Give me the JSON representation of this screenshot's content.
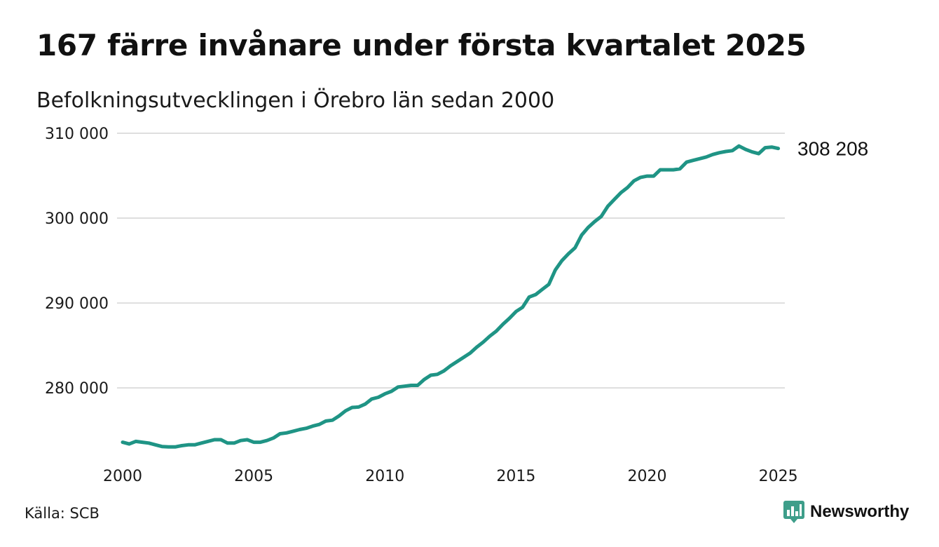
{
  "title": "167 färre invånare under första kvartalet 2025",
  "subtitle": "Befolkningsutvecklingen i Örebro län sedan 2000",
  "source": "Källa: SCB",
  "brand": {
    "name": "Newsworthy",
    "color": "#3e9e8a",
    "icon": "newsworthy-logo-icon"
  },
  "chart_data": {
    "type": "line",
    "title": "167 färre invånare under första kvartalet 2025",
    "subtitle": "Befolkningsutvecklingen i Örebro län sedan 2000",
    "xlabel": "",
    "ylabel": "",
    "xlim": [
      2000,
      2025.25
    ],
    "ylim": [
      272000,
      310000
    ],
    "x_ticks": [
      2000,
      2005,
      2010,
      2015,
      2020,
      2025
    ],
    "x_tick_labels": [
      "2000",
      "2005",
      "2010",
      "2015",
      "2020",
      "2025"
    ],
    "y_ticks": [
      280000,
      290000,
      300000,
      310000
    ],
    "y_tick_labels": [
      "280 000",
      "290 000",
      "300 000",
      "310 000"
    ],
    "grid": "horizontal",
    "line_color": "#1f9485",
    "end_label": "308 208",
    "series": [
      {
        "x": [
          2000,
          2000.25,
          2000.5,
          2000.75,
          2001,
          2001.25,
          2001.5,
          2001.75,
          2002,
          2002.25,
          2002.5,
          2002.75,
          2003,
          2003.25,
          2003.5,
          2003.75,
          2004,
          2004.25,
          2004.5,
          2004.75,
          2005,
          2005.25,
          2005.5,
          2005.75,
          2006,
          2006.25,
          2006.5,
          2006.75,
          2007,
          2007.25,
          2007.5,
          2007.75,
          2008,
          2008.25,
          2008.5,
          2008.75,
          2009,
          2009.25,
          2009.5,
          2009.75,
          2010,
          2010.25,
          2010.5,
          2010.75,
          2011,
          2011.25,
          2011.5,
          2011.75,
          2012,
          2012.25,
          2012.5,
          2012.75,
          2013,
          2013.25,
          2013.5,
          2013.75,
          2014,
          2014.25,
          2014.5,
          2014.75,
          2015,
          2015.25,
          2015.5,
          2015.75,
          2016,
          2016.25,
          2016.5,
          2016.75,
          2017,
          2017.25,
          2017.5,
          2017.75,
          2018,
          2018.25,
          2018.5,
          2018.75,
          2019,
          2019.25,
          2019.5,
          2019.75,
          2020,
          2020.25,
          2020.5,
          2020.75,
          2021,
          2021.25,
          2021.5,
          2021.75,
          2022,
          2022.25,
          2022.5,
          2022.75,
          2023,
          2023.25,
          2023.5,
          2023.75,
          2024,
          2024.25,
          2024.5,
          2024.75,
          2025
        ],
        "values": [
          273600,
          273400,
          273700,
          273600,
          273500,
          273300,
          273100,
          273050,
          273050,
          273200,
          273300,
          273300,
          273500,
          273700,
          273900,
          273900,
          273500,
          273500,
          273800,
          273900,
          273600,
          273600,
          273800,
          274100,
          274600,
          274700,
          274900,
          275100,
          275250,
          275500,
          275700,
          276100,
          276200,
          276700,
          277300,
          277700,
          277750,
          278100,
          278700,
          278900,
          279300,
          279600,
          280100,
          280200,
          280300,
          280300,
          281000,
          281500,
          281600,
          282000,
          282600,
          283100,
          283600,
          284100,
          284800,
          285400,
          286100,
          286700,
          287500,
          288200,
          289000,
          289500,
          290700,
          291000,
          291600,
          292200,
          293900,
          295000,
          295800,
          296500,
          298000,
          298900,
          299600,
          300200,
          301400,
          302200,
          303000,
          303600,
          304400,
          304800,
          304950,
          304950,
          305700,
          305700,
          305700,
          305800,
          306600,
          306800,
          307000,
          307200,
          307500,
          307700,
          307850,
          307950,
          308500,
          308100,
          307800,
          307600,
          308300,
          308375,
          308208
        ]
      }
    ]
  }
}
